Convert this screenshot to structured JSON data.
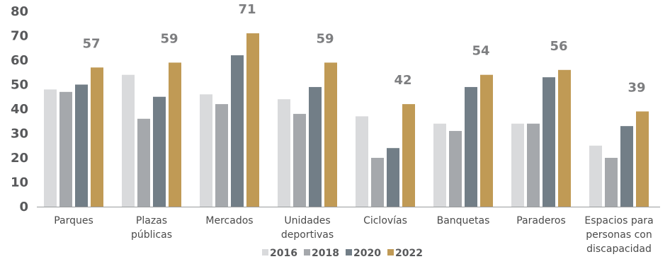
{
  "chart_data": {
    "type": "bar",
    "categories": [
      [
        "Parques"
      ],
      [
        "Plazas",
        "públicas"
      ],
      [
        "Mercados"
      ],
      [
        "Unidades",
        "deportivas"
      ],
      [
        "Ciclovías"
      ],
      [
        "Banquetas"
      ],
      [
        "Paraderos"
      ],
      [
        "Espacios para",
        "personas con",
        "discapacidad"
      ]
    ],
    "series": [
      {
        "name": "2016",
        "color": "#d9dadc",
        "values": [
          48,
          54,
          46,
          44,
          37,
          34,
          34,
          25
        ]
      },
      {
        "name": "2018",
        "color": "#a5a8ac",
        "values": [
          47,
          36,
          42,
          38,
          20,
          31,
          34,
          20
        ]
      },
      {
        "name": "2020",
        "color": "#727e87",
        "values": [
          50,
          45,
          62,
          49,
          24,
          49,
          53,
          33
        ]
      },
      {
        "name": "2022",
        "color": "#c09a55",
        "values": [
          57,
          59,
          71,
          59,
          42,
          54,
          56,
          39
        ]
      }
    ],
    "data_labels": [
      "57",
      "59",
      "71",
      "59",
      "42",
      "54",
      "56",
      "39"
    ],
    "ylim": [
      0,
      80
    ],
    "yticks": [
      0,
      10,
      20,
      30,
      40,
      50,
      60,
      70,
      80
    ],
    "grid": false,
    "legend": "bottom"
  }
}
